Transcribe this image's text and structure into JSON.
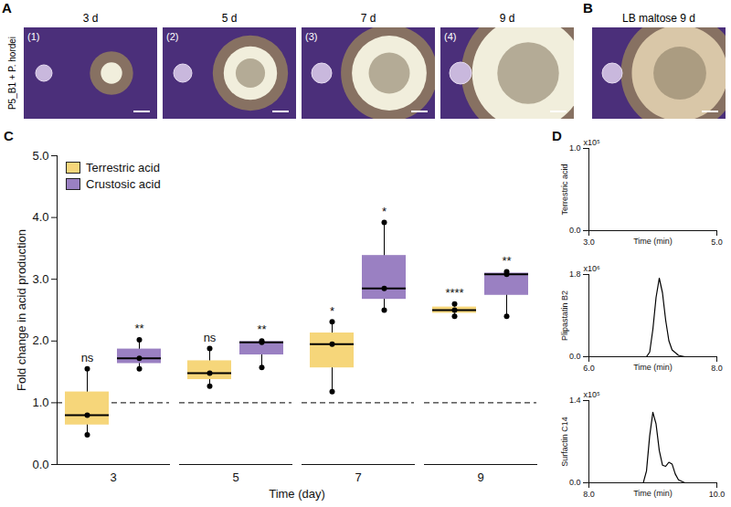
{
  "figure": {
    "A": {
      "letter": "A",
      "row_label": "P5_B1 + P. hordei",
      "images": [
        {
          "label": "(1)",
          "title": "3 d"
        },
        {
          "label": "(2)",
          "title": "5 d"
        },
        {
          "label": "(3)",
          "title": "7 d"
        },
        {
          "label": "(4)",
          "title": "9 d"
        }
      ]
    },
    "B": {
      "letter": "B",
      "title": "LB maltose 9 d"
    }
  },
  "chart_data": [
    {
      "panel": "C",
      "type": "box",
      "ylabel": "Fold change in acid production",
      "xlabel": "Time (day)",
      "categories": [
        3,
        5,
        7,
        9
      ],
      "ylim": [
        0,
        5
      ],
      "yticks": [
        0,
        1,
        2,
        3,
        4,
        5
      ],
      "reference_line": 1,
      "legend": "top-left",
      "series": [
        {
          "name": "Terrestric acid",
          "color": "#f6d67a",
          "values": [
            [
              0.48,
              0.8,
              1.55
            ],
            [
              1.27,
              1.48,
              1.88
            ],
            [
              1.18,
              1.95,
              2.31
            ],
            [
              2.4,
              2.5,
              2.6
            ]
          ],
          "significance": [
            "ns",
            "ns",
            "*",
            "****"
          ]
        },
        {
          "name": "Crustosic acid",
          "color": "#9a80c2",
          "values": [
            [
              1.55,
              1.72,
              2.02
            ],
            [
              1.57,
              1.98,
              2.0
            ],
            [
              2.5,
              2.85,
              3.92
            ],
            [
              2.4,
              3.08,
              3.12
            ]
          ],
          "significance": [
            "**",
            "**",
            "*",
            "**"
          ]
        }
      ]
    },
    {
      "panel": "D",
      "type": "line",
      "ylabel": "Terrestric acid",
      "xlabel": "Time (min)",
      "y_multiplier": "x10⁵",
      "x": [
        3,
        5
      ],
      "values": [
        0,
        0
      ],
      "xlim": [
        3,
        5
      ],
      "xticks": [
        3,
        5
      ],
      "ylim": [
        0,
        1
      ],
      "yticks": [
        0,
        1
      ]
    },
    {
      "type": "line",
      "ylabel": "Plipastatin B2",
      "xlabel": "Time (min)",
      "y_multiplier": "x10⁶",
      "x": [
        6,
        6.9,
        6.95,
        7.0,
        7.05,
        7.1,
        7.15,
        7.2,
        7.25,
        7.3,
        7.4,
        7.5,
        8
      ],
      "values": [
        0,
        0,
        0.1,
        0.6,
        1.3,
        1.72,
        1.4,
        0.8,
        0.35,
        0.15,
        0.03,
        0,
        0
      ],
      "xlim": [
        6,
        8
      ],
      "xticks": [
        6,
        8
      ],
      "ylim": [
        0,
        1.8
      ],
      "yticks": [
        0,
        1.8
      ]
    },
    {
      "type": "line",
      "ylabel": "Surfactin C14",
      "xlabel": "Time (min)",
      "y_multiplier": "x10⁵",
      "x": [
        8,
        8.85,
        8.9,
        8.95,
        9.0,
        9.05,
        9.1,
        9.15,
        9.2,
        9.25,
        9.3,
        9.35,
        9.4,
        9.5,
        10
      ],
      "values": [
        0,
        0,
        0.2,
        0.8,
        1.2,
        1.0,
        0.55,
        0.3,
        0.28,
        0.35,
        0.32,
        0.15,
        0.05,
        0,
        0
      ],
      "xlim": [
        8,
        10
      ],
      "xticks": [
        8,
        10
      ],
      "ylim": [
        0,
        1.4
      ],
      "yticks": [
        0,
        1.4
      ]
    }
  ]
}
